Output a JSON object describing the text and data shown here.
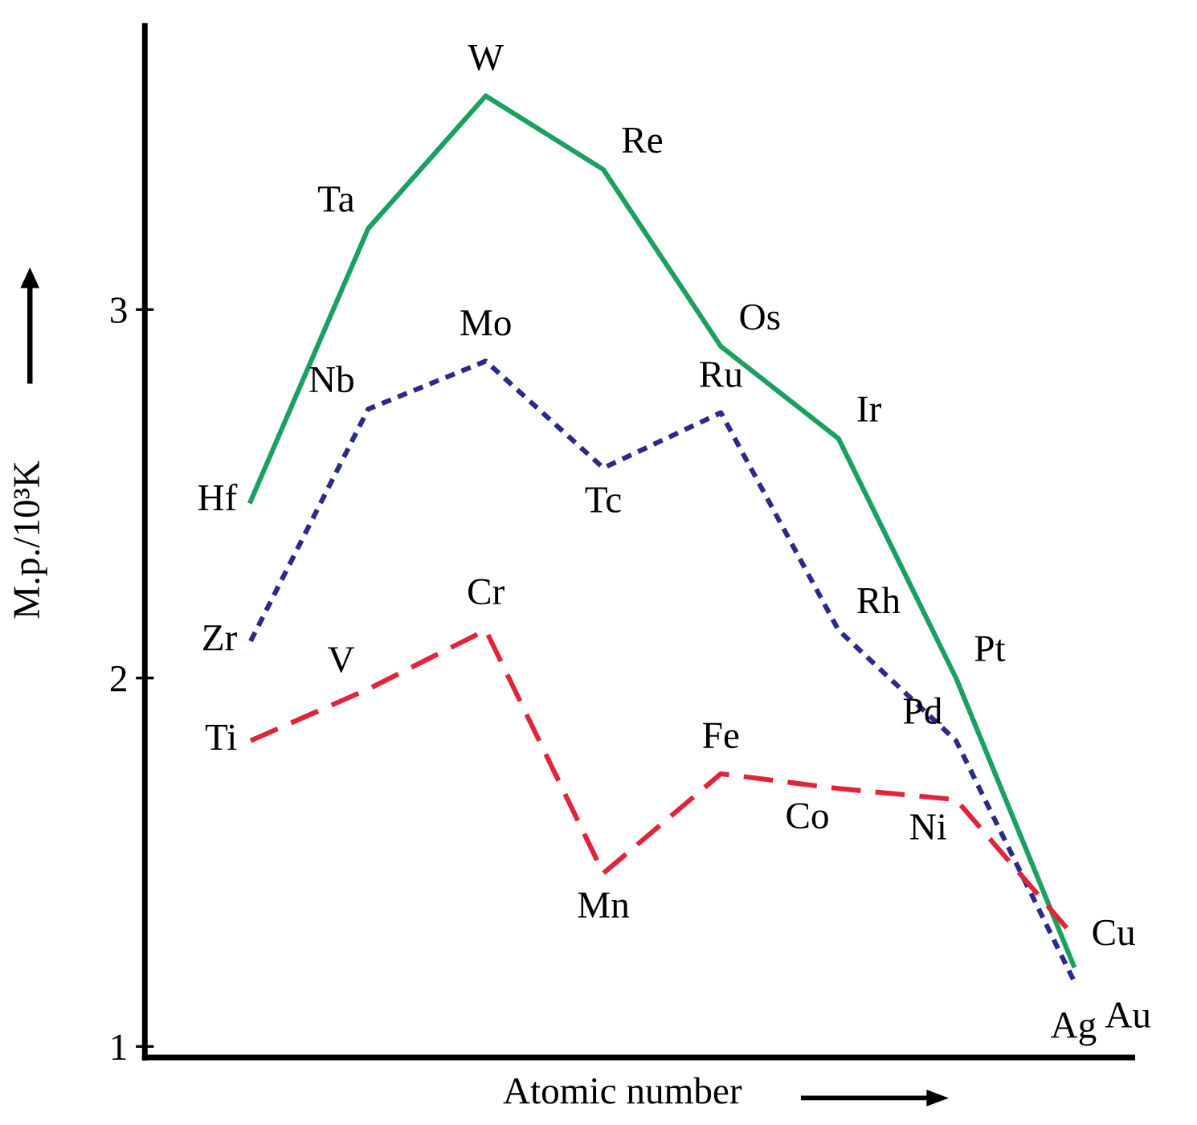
{
  "chart_data": {
    "type": "line",
    "xlabel": "Atomic number",
    "ylabel": "M.p./10³K",
    "categories": [
      null,
      null,
      null,
      null,
      null,
      null,
      null,
      null
    ],
    "series": [
      {
        "color": "#1aa060",
        "line_style": "solid",
        "values": [
          2.48,
          3.22,
          3.58,
          3.38,
          2.9,
          2.65,
          2.0,
          1.22
        ],
        "value_labels": [
          "Hf",
          "Ta",
          "W",
          "Re",
          "Os",
          "Ir",
          "Pt",
          "Au"
        ]
      },
      {
        "color": "#2b2a8a",
        "line_style": "dotted",
        "values": [
          2.1,
          2.73,
          2.86,
          2.57,
          2.72,
          2.13,
          1.83,
          1.18
        ],
        "value_labels": [
          "Zr",
          "Nb",
          "Mo",
          "Tc",
          "Ru",
          "Rh",
          "Pd",
          "Ag"
        ]
      },
      {
        "color": "#e0253a",
        "line_style": "dashed",
        "values": [
          1.83,
          1.97,
          2.13,
          1.47,
          1.74,
          1.7,
          1.67,
          1.3
        ],
        "value_labels": [
          "Ti",
          "V",
          "Cr",
          "Mn",
          "Fe",
          "Co",
          "Ni",
          "Cu"
        ]
      }
    ],
    "ylim": [
      0.97,
      3.77
    ],
    "yticks": [
      1,
      2,
      3
    ],
    "tick_labels": "y",
    "grid": false,
    "legend": false,
    "marker": "none"
  }
}
